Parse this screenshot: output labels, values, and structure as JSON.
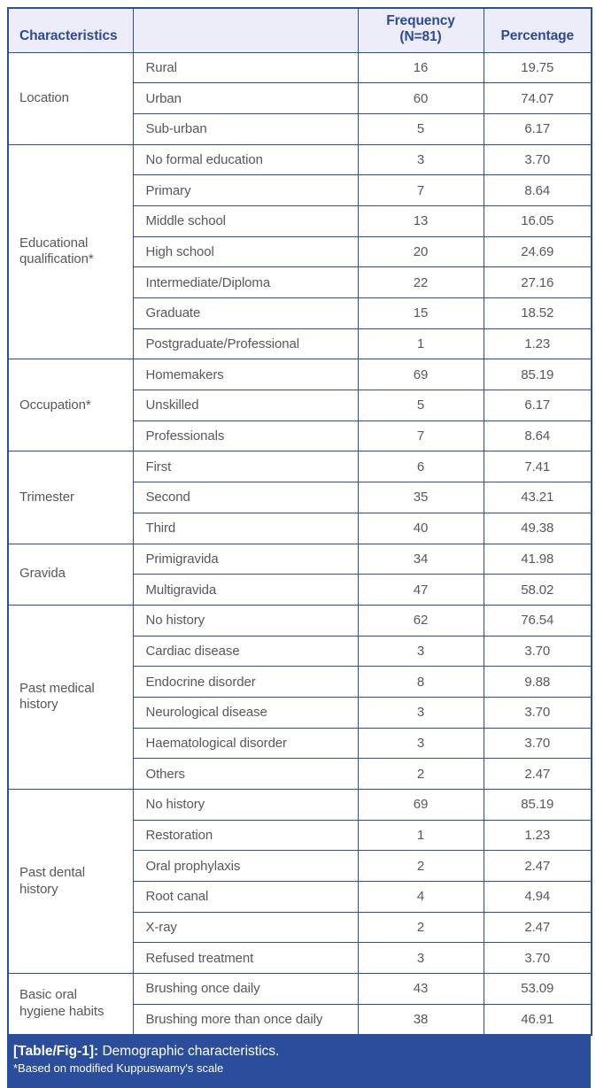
{
  "table": {
    "header": {
      "characteristics": "Characteristics",
      "sub": "",
      "frequency_line1": "Frequency",
      "frequency_line2": "(N=81)",
      "percentage": "Percentage"
    },
    "groups": [
      {
        "label": "Location",
        "rows": [
          {
            "sub": "Rural",
            "frequency": "16",
            "percentage": "19.75"
          },
          {
            "sub": "Urban",
            "frequency": "60",
            "percentage": "74.07"
          },
          {
            "sub": "Sub-urban",
            "frequency": "5",
            "percentage": "6.17"
          }
        ]
      },
      {
        "label": "Educational qualification*",
        "rows": [
          {
            "sub": "No formal education",
            "frequency": "3",
            "percentage": "3.70"
          },
          {
            "sub": "Primary",
            "frequency": "7",
            "percentage": "8.64"
          },
          {
            "sub": "Middle school",
            "frequency": "13",
            "percentage": "16.05"
          },
          {
            "sub": "High school",
            "frequency": "20",
            "percentage": "24.69"
          },
          {
            "sub": "Intermediate/Diploma",
            "frequency": "22",
            "percentage": "27.16"
          },
          {
            "sub": "Graduate",
            "frequency": "15",
            "percentage": "18.52"
          },
          {
            "sub": "Postgraduate/Professional",
            "frequency": "1",
            "percentage": "1.23"
          }
        ]
      },
      {
        "label": "Occupation*",
        "rows": [
          {
            "sub": "Homemakers",
            "frequency": "69",
            "percentage": "85.19"
          },
          {
            "sub": "Unskilled",
            "frequency": "5",
            "percentage": "6.17"
          },
          {
            "sub": "Professionals",
            "frequency": "7",
            "percentage": "8.64"
          }
        ]
      },
      {
        "label": "Trimester",
        "rows": [
          {
            "sub": "First",
            "frequency": "6",
            "percentage": "7.41"
          },
          {
            "sub": "Second",
            "frequency": "35",
            "percentage": "43.21"
          },
          {
            "sub": "Third",
            "frequency": "40",
            "percentage": "49.38"
          }
        ]
      },
      {
        "label": "Gravida",
        "rows": [
          {
            "sub": "Primigravida",
            "frequency": "34",
            "percentage": "41.98"
          },
          {
            "sub": "Multigravida",
            "frequency": "47",
            "percentage": "58.02"
          }
        ]
      },
      {
        "label": "Past medical history",
        "rows": [
          {
            "sub": "No history",
            "frequency": "62",
            "percentage": "76.54"
          },
          {
            "sub": "Cardiac disease",
            "frequency": "3",
            "percentage": "3.70"
          },
          {
            "sub": "Endocrine disorder",
            "frequency": "8",
            "percentage": "9.88"
          },
          {
            "sub": "Neurological disease",
            "frequency": "3",
            "percentage": "3.70"
          },
          {
            "sub": "Haematological disorder",
            "frequency": "3",
            "percentage": "3.70"
          },
          {
            "sub": "Others",
            "frequency": "2",
            "percentage": "2.47"
          }
        ]
      },
      {
        "label": "Past dental history",
        "rows": [
          {
            "sub": "No history",
            "frequency": "69",
            "percentage": "85.19"
          },
          {
            "sub": "Restoration",
            "frequency": "1",
            "percentage": "1.23"
          },
          {
            "sub": "Oral prophylaxis",
            "frequency": "2",
            "percentage": "2.47"
          },
          {
            "sub": "Root canal",
            "frequency": "4",
            "percentage": "4.94"
          },
          {
            "sub": "X-ray",
            "frequency": "2",
            "percentage": "2.47"
          },
          {
            "sub": "Refused treatment",
            "frequency": "3",
            "percentage": "3.70"
          }
        ]
      },
      {
        "label": "Basic oral hygiene habits",
        "rows": [
          {
            "sub": "Brushing once daily",
            "frequency": "43",
            "percentage": "53.09"
          },
          {
            "sub": "Brushing more than once daily",
            "frequency": "38",
            "percentage": "46.91"
          }
        ]
      }
    ]
  },
  "caption": {
    "tag": "[Table/Fig-1]:",
    "title": "Demographic characteristics.",
    "footnote": "*Based on modified Kuppuswamy's scale"
  },
  "colors": {
    "border_accent": "#2b4e9c",
    "header_bg": "#ecedf6",
    "header_text": "#2b4a9b",
    "body_text": "#57585a",
    "caption_bg": "#2b4e9c",
    "caption_text": "#ffffff"
  }
}
